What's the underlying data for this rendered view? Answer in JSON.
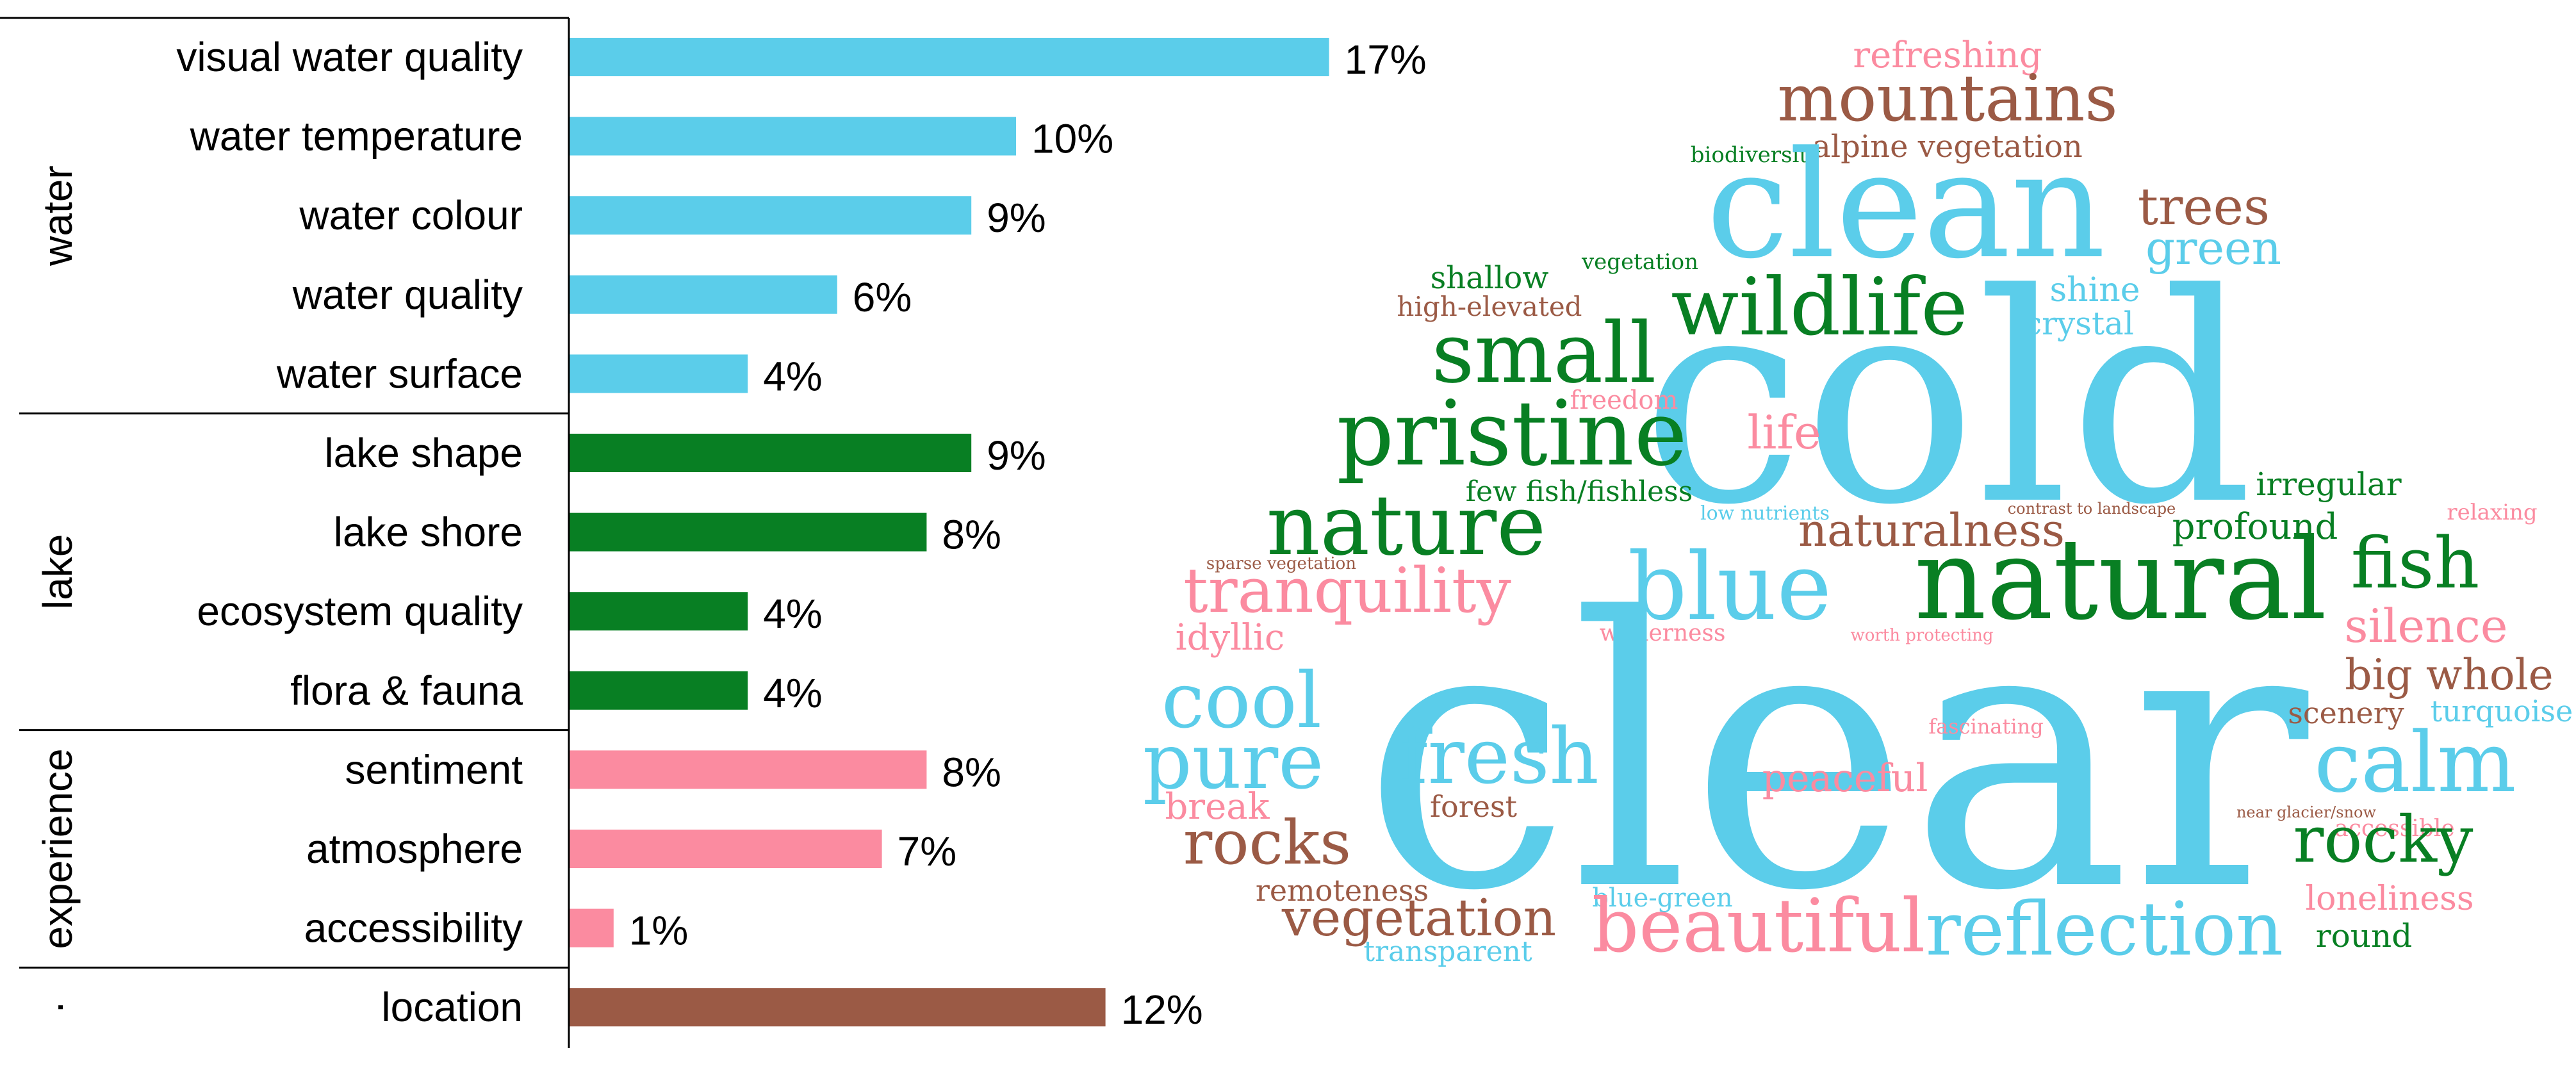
{
  "chart_data": [
    {
      "type": "bar",
      "orientation": "horizontal",
      "title": "",
      "xlabel": "",
      "ylabel": "",
      "xlim": [
        0,
        20
      ],
      "groups": [
        {
          "name": "water",
          "color": "#5bcdea",
          "categories": [
            "visual water quality",
            "water temperature",
            "water colour",
            "water quality",
            "water surface"
          ],
          "values": [
            17,
            10,
            9,
            6,
            4
          ],
          "labels": [
            "17%",
            "10%",
            "9%",
            "6%",
            "4%"
          ]
        },
        {
          "name": "lake",
          "color": "#087f23",
          "categories": [
            "lake shape",
            "lake shore",
            "ecosystem quality",
            "flora & fauna"
          ],
          "values": [
            9,
            8,
            4,
            4
          ],
          "labels": [
            "9%",
            "8%",
            "4%",
            "4%"
          ]
        },
        {
          "name": "experience",
          "color": "#fb8ba0",
          "categories": [
            "sentiment",
            "atmosphere",
            "accessibility"
          ],
          "values": [
            8,
            7,
            1
          ],
          "labels": [
            "8%",
            "7%",
            "1%"
          ]
        },
        {
          "name": "·",
          "color": "#9b5a45",
          "categories": [
            "location"
          ],
          "values": [
            12
          ],
          "labels": [
            "12%"
          ]
        }
      ]
    },
    {
      "type": "wordcloud",
      "colors": {
        "water": "#5bcdea",
        "lake": "#087f23",
        "experience": "#fb8ba0",
        "location": "#9b5a45"
      },
      "words": [
        {
          "text": "refreshing",
          "group": "experience"
        },
        {
          "text": "mountains",
          "group": "location"
        },
        {
          "text": "biodiversity",
          "group": "lake"
        },
        {
          "text": "alpine vegetation",
          "group": "location"
        },
        {
          "text": "clean",
          "group": "water"
        },
        {
          "text": "trees",
          "group": "location"
        },
        {
          "text": "green",
          "group": "water"
        },
        {
          "text": "shallow",
          "group": "lake"
        },
        {
          "text": "vegetation",
          "group": "lake"
        },
        {
          "text": "high-elevated",
          "group": "location"
        },
        {
          "text": "wildlife",
          "group": "lake"
        },
        {
          "text": "shine",
          "group": "water"
        },
        {
          "text": "crystal",
          "group": "water"
        },
        {
          "text": "small",
          "group": "lake"
        },
        {
          "text": "cold",
          "group": "water"
        },
        {
          "text": "freedom",
          "group": "experience"
        },
        {
          "text": "pristine",
          "group": "lake"
        },
        {
          "text": "life",
          "group": "experience"
        },
        {
          "text": "few fish/fishless",
          "group": "lake"
        },
        {
          "text": "irregular",
          "group": "lake"
        },
        {
          "text": "low nutrients",
          "group": "water"
        },
        {
          "text": "contrast to landscape",
          "group": "location"
        },
        {
          "text": "nature",
          "group": "lake"
        },
        {
          "text": "naturalness",
          "group": "location"
        },
        {
          "text": "profound",
          "group": "lake"
        },
        {
          "text": "relaxing",
          "group": "experience"
        },
        {
          "text": "sparse vegetation",
          "group": "location"
        },
        {
          "text": "tranquility",
          "group": "experience"
        },
        {
          "text": "blue",
          "group": "water"
        },
        {
          "text": "natural",
          "group": "lake"
        },
        {
          "text": "fish",
          "group": "lake"
        },
        {
          "text": "idyllic",
          "group": "experience"
        },
        {
          "text": "wilderness",
          "group": "experience"
        },
        {
          "text": "worth protecting",
          "group": "experience"
        },
        {
          "text": "silence",
          "group": "experience"
        },
        {
          "text": "big whole",
          "group": "location"
        },
        {
          "text": "cool",
          "group": "water"
        },
        {
          "text": "clear",
          "group": "water"
        },
        {
          "text": "scenery",
          "group": "location"
        },
        {
          "text": "turquoise",
          "group": "water"
        },
        {
          "text": "fascinating",
          "group": "experience"
        },
        {
          "text": "fresh",
          "group": "water"
        },
        {
          "text": "pure",
          "group": "water"
        },
        {
          "text": "calm",
          "group": "water"
        },
        {
          "text": "peaceful",
          "group": "experience"
        },
        {
          "text": "forest",
          "group": "location"
        },
        {
          "text": "break",
          "group": "experience"
        },
        {
          "text": "near glacier/snow",
          "group": "location"
        },
        {
          "text": "accessible",
          "group": "experience"
        },
        {
          "text": "rocks",
          "group": "location"
        },
        {
          "text": "rocky",
          "group": "lake"
        },
        {
          "text": "remoteness",
          "group": "location"
        },
        {
          "text": "loneliness",
          "group": "experience"
        },
        {
          "text": "blue-green",
          "group": "water"
        },
        {
          "text": "vegetation",
          "group": "location"
        },
        {
          "text": "beautiful",
          "group": "experience"
        },
        {
          "text": "reflection",
          "group": "water"
        },
        {
          "text": "round",
          "group": "lake"
        },
        {
          "text": "transparent",
          "group": "water"
        }
      ]
    }
  ]
}
